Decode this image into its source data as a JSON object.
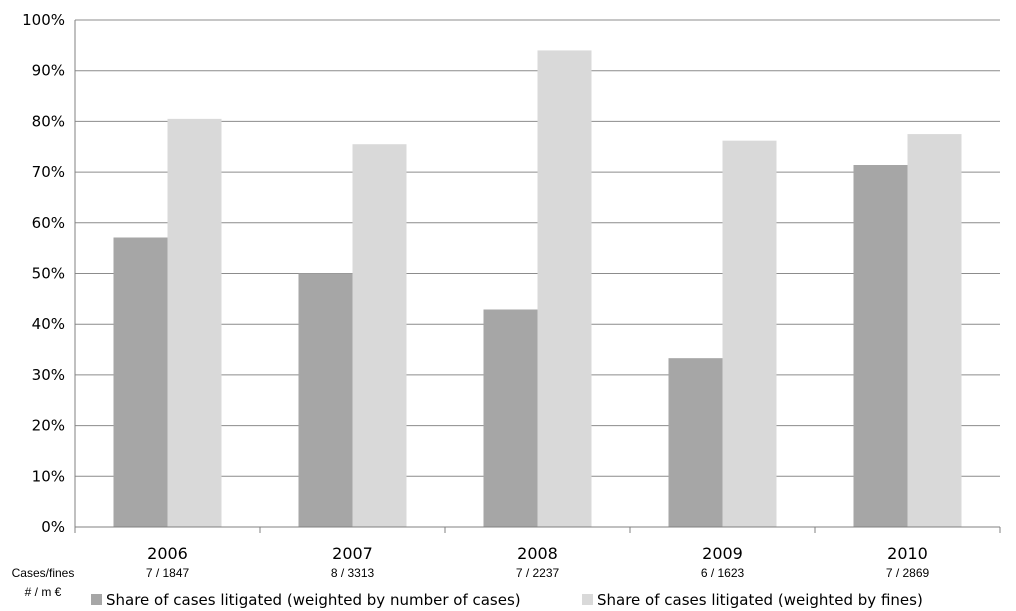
{
  "chart_data": {
    "type": "bar",
    "categories": [
      "2006",
      "2007",
      "2008",
      "2009",
      "2010"
    ],
    "category_sublabels": [
      "7 / 1847",
      "8 / 3313",
      "7 / 2237",
      "6 / 1623",
      "7 / 2869"
    ],
    "row_label_lines": [
      "Cases/fines",
      "# / m €"
    ],
    "series": [
      {
        "name": "Share of cases litigated (weighted by number of cases)",
        "color": "#a6a6a6",
        "values": [
          57.1,
          50.0,
          42.9,
          33.3,
          71.4
        ]
      },
      {
        "name": "Share of cases litigated (weighted by fines)",
        "color": "#d9d9d9",
        "values": [
          80.5,
          75.5,
          94.0,
          76.2,
          77.5
        ]
      }
    ],
    "y_ticks": [
      "0%",
      "10%",
      "20%",
      "30%",
      "40%",
      "50%",
      "60%",
      "70%",
      "80%",
      "90%",
      "100%"
    ],
    "ylim": [
      0,
      100
    ],
    "grid": true,
    "legend_position": "bottom"
  }
}
